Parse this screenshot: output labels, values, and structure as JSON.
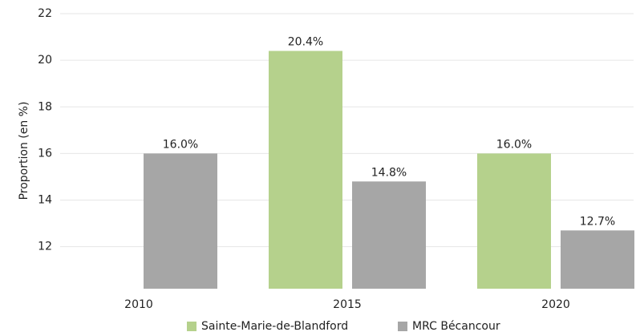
{
  "chart_data": {
    "type": "bar",
    "y_label": "Proportion (en %)",
    "categories": [
      "2010",
      "2015",
      "2020"
    ],
    "series": [
      {
        "name": "Sainte-Marie-de-Blandford",
        "color": "#b5d18c",
        "values": [
          null,
          20.4,
          16.0
        ],
        "value_labels": [
          null,
          "20.4%",
          "16.0%"
        ]
      },
      {
        "name": "MRC Bécancour",
        "color": "#a6a6a6",
        "values": [
          16.0,
          14.8,
          12.7
        ],
        "value_labels": [
          "16.0%",
          "14.8%",
          "12.7%"
        ]
      }
    ],
    "ylim": [
      10.2,
      22
    ],
    "yticks": [
      12,
      14,
      16,
      18,
      20,
      22
    ],
    "grid": true,
    "legend": "bottom"
  }
}
